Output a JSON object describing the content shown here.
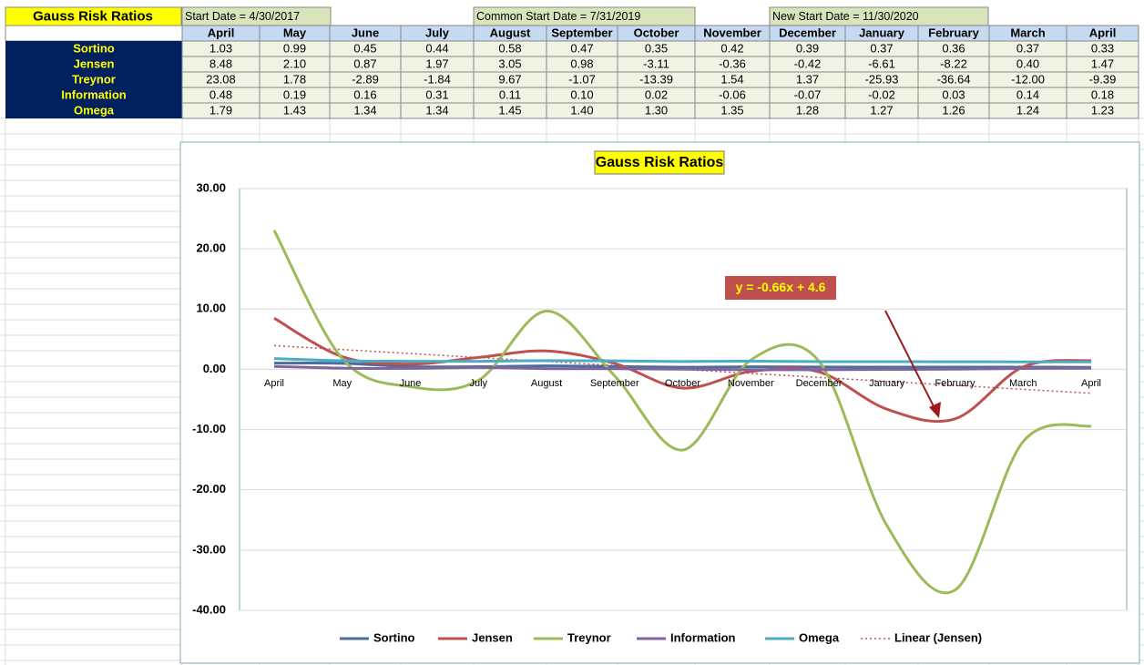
{
  "sheet": {
    "title": "Gauss Risk Ratios",
    "start_dates": [
      "Start Date = 4/30/2017",
      "Common Start Date = 7/31/2019",
      "New Start Date = 11/30/2020"
    ],
    "columns": [
      "April",
      "May",
      "June",
      "July",
      "August",
      "September",
      "October",
      "November",
      "December",
      "January",
      "February",
      "March",
      "April"
    ],
    "rows": [
      {
        "label": "Sortino",
        "cells": [
          "1.03",
          "0.99",
          "0.45",
          "0.44",
          "0.58",
          "0.47",
          "0.35",
          "0.42",
          "0.39",
          "0.37",
          "0.36",
          "0.37",
          "0.33"
        ]
      },
      {
        "label": "Jensen",
        "cells": [
          "8.48",
          "2.10",
          "0.87",
          "1.97",
          "3.05",
          "0.98",
          "-3.11",
          "-0.36",
          "-0.42",
          "-6.61",
          "-8.22",
          "0.40",
          "1.47"
        ]
      },
      {
        "label": "Treynor",
        "cells": [
          "23.08",
          "1.78",
          "-2.89",
          "-1.84",
          "9.67",
          "-1.07",
          "-13.39",
          "1.54",
          "1.37",
          "-25.93",
          "-36.64",
          "-12.00",
          "-9.39"
        ]
      },
      {
        "label": "Information",
        "cells": [
          "0.48",
          "0.19",
          "0.16",
          "0.31",
          "0.11",
          "0.10",
          "0.02",
          "-0.06",
          "-0.07",
          "-0.02",
          "0.03",
          "0.14",
          "0.18"
        ]
      },
      {
        "label": "Omega",
        "cells": [
          "1.79",
          "1.43",
          "1.34",
          "1.34",
          "1.45",
          "1.40",
          "1.30",
          "1.35",
          "1.28",
          "1.27",
          "1.26",
          "1.24",
          "1.23"
        ]
      }
    ]
  },
  "chart_data": {
    "type": "line",
    "smooth": true,
    "title": "Gauss Risk Ratios",
    "categories": [
      "April",
      "May",
      "June",
      "July",
      "August",
      "September",
      "October",
      "November",
      "December",
      "January",
      "February",
      "March",
      "April"
    ],
    "series": [
      {
        "name": "Sortino",
        "color": "#4a6e9a",
        "values": [
          1.03,
          0.99,
          0.45,
          0.44,
          0.58,
          0.47,
          0.35,
          0.42,
          0.39,
          0.37,
          0.36,
          0.37,
          0.33
        ]
      },
      {
        "name": "Jensen",
        "color": "#c0504d",
        "values": [
          8.48,
          2.1,
          0.87,
          1.97,
          3.05,
          0.98,
          -3.11,
          -0.36,
          -0.42,
          -6.61,
          -8.22,
          0.4,
          1.47
        ]
      },
      {
        "name": "Treynor",
        "color": "#9bbb59",
        "values": [
          23.08,
          1.78,
          -2.89,
          -1.84,
          9.67,
          -1.07,
          -13.39,
          1.54,
          1.37,
          -25.93,
          -36.64,
          -12.0,
          -9.39
        ]
      },
      {
        "name": "Information",
        "color": "#8064a2",
        "values": [
          0.48,
          0.19,
          0.16,
          0.31,
          0.11,
          0.1,
          0.02,
          -0.06,
          -0.07,
          -0.02,
          0.03,
          0.14,
          0.18
        ]
      },
      {
        "name": "Omega",
        "color": "#4bacc6",
        "values": [
          1.79,
          1.43,
          1.34,
          1.34,
          1.45,
          1.4,
          1.3,
          1.35,
          1.28,
          1.27,
          1.26,
          1.24,
          1.23
        ]
      }
    ],
    "trendline": {
      "name": "Linear (Jensen)",
      "color": "#c0504d",
      "slope": -0.66,
      "intercept": 4.6,
      "label": "y = -0.66x + 4.6"
    },
    "ylim": [
      -40,
      30
    ],
    "yticks": [
      {
        "value": -40,
        "label": "-40.00"
      },
      {
        "value": -30,
        "label": "-30.00"
      },
      {
        "value": -20,
        "label": "-20.00"
      },
      {
        "value": -10,
        "label": "-10.00"
      },
      {
        "value": 0,
        "label": "0.00"
      },
      {
        "value": 10,
        "label": "10.00"
      },
      {
        "value": 20,
        "label": "20.00"
      },
      {
        "value": 30,
        "label": "30.00"
      }
    ],
    "grid": true,
    "legend": "bottom"
  }
}
